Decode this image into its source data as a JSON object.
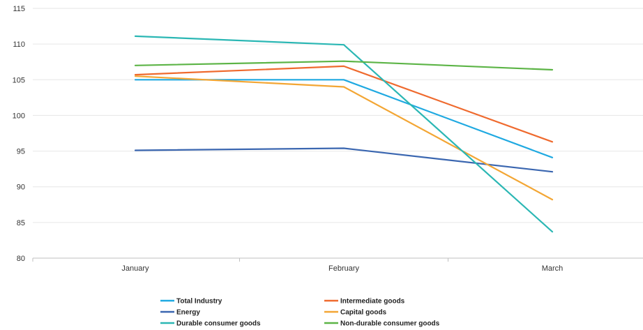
{
  "chart_data": {
    "type": "line",
    "categories": [
      "January",
      "February",
      "March"
    ],
    "ylim": [
      80,
      115
    ],
    "yticks": [
      80,
      85,
      90,
      95,
      100,
      105,
      110,
      115
    ],
    "grid": true,
    "legend_position": "bottom",
    "series": [
      {
        "name": "Total Industry",
        "color": "#1fa9e1",
        "values": [
          105.0,
          105.0,
          94.1
        ]
      },
      {
        "name": "Intermediate goods",
        "color": "#ef6a2e",
        "values": [
          105.7,
          106.9,
          96.3
        ]
      },
      {
        "name": "Energy",
        "color": "#3a66b0",
        "values": [
          95.1,
          95.4,
          92.1
        ]
      },
      {
        "name": "Capital goods",
        "color": "#f3a634",
        "values": [
          105.5,
          104.0,
          88.2
        ]
      },
      {
        "name": "Durable consumer goods",
        "color": "#2bb7b4",
        "values": [
          111.1,
          109.9,
          83.7
        ]
      },
      {
        "name": "Non-durable consumer goods",
        "color": "#5cb446",
        "values": [
          107.0,
          107.6,
          106.4
        ]
      }
    ]
  }
}
